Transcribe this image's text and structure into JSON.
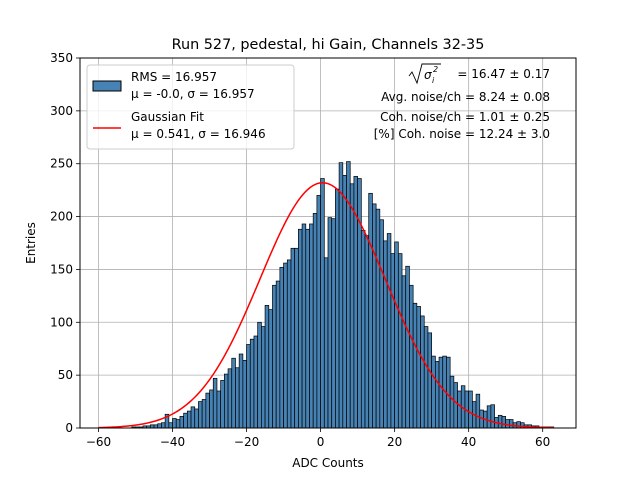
{
  "chart_data": {
    "type": "bar",
    "title": "Run 527, pedestal, hi Gain, Channels 32-35",
    "xlabel": "ADC Counts",
    "ylabel": "Entries",
    "xlim": [
      -65,
      69
    ],
    "ylim": [
      0,
      350
    ],
    "xticks": [
      -60,
      -40,
      -20,
      0,
      20,
      40,
      60
    ],
    "yticks": [
      0,
      50,
      100,
      150,
      200,
      250,
      300,
      350
    ],
    "grid": true,
    "legend_position": "top-left",
    "bin_width": 1,
    "bin_start": -60,
    "histogram": {
      "name": "RMS = 16.957",
      "name_line2": "μ = -0.0, σ = 16.957",
      "values": [
        0,
        0,
        0,
        0,
        0,
        0,
        0,
        0,
        0,
        1,
        1,
        1,
        2,
        2,
        3,
        3,
        4,
        5,
        13,
        5,
        9,
        8,
        11,
        14,
        16,
        20,
        18,
        25,
        27,
        33,
        36,
        47,
        35,
        45,
        51,
        56,
        66,
        57,
        70,
        64,
        79,
        84,
        87,
        100,
        96,
        116,
        112,
        135,
        139,
        152,
        156,
        159,
        170,
        170,
        188,
        193,
        188,
        193,
        203,
        220,
        236,
        161,
        199,
        198,
        226,
        251,
        239,
        252,
        231,
        238,
        236,
        187,
        182,
        222,
        212,
        207,
        197,
        177,
        184,
        165,
        176,
        165,
        144,
        153,
        135,
        118,
        115,
        106,
        96,
        90,
        68,
        63,
        67,
        68,
        67,
        49,
        43,
        35,
        40,
        35,
        35,
        25,
        32,
        17,
        16,
        21,
        22,
        10,
        12,
        11,
        8,
        8,
        5,
        6,
        5,
        3,
        3,
        2,
        2,
        1,
        1,
        1,
        1,
        0
      ],
      "color": "#4682b4"
    },
    "fit": {
      "name": "Gaussian Fit",
      "name_line2": "μ = 0.541, σ = 16.946",
      "mu": 0.541,
      "sigma": 16.946,
      "amplitude": 232,
      "x_range": [
        -60,
        63
      ],
      "color": "#ff0000"
    },
    "annotations": [
      {
        "prefix": "σ",
        "sub": "i",
        "sup": "2",
        "value": "= 16.47 ± 0.17"
      },
      {
        "text": "Avg. noise/ch = 8.24 ± 0.08"
      },
      {
        "text": "Coh. noise/ch = 1.01 ± 0.25"
      },
      {
        "text": "[%] Coh. noise = 12.24 ± 3.0"
      }
    ]
  }
}
